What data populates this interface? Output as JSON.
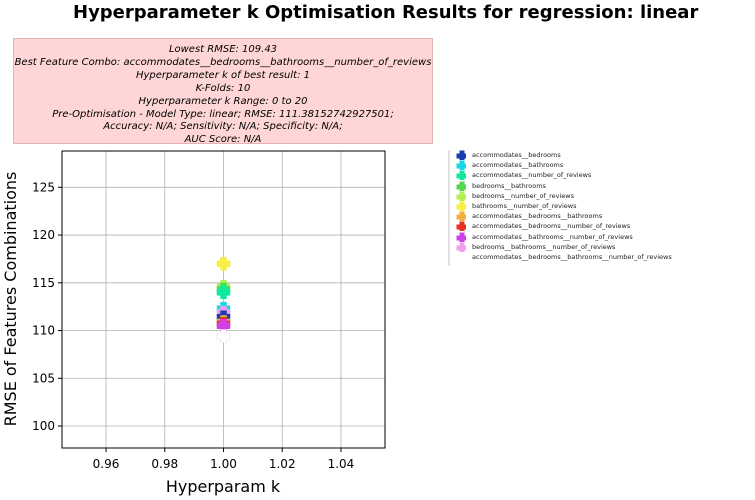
{
  "title": "Hyperparameter k Optimisation Results for regression: linear",
  "info_lines": [
    "Lowest RMSE: 109.43",
    "Best Feature Combo: accommodates__bedrooms__bathrooms__number_of_reviews",
    "Hyperparameter k of best result: 1",
    "K-Folds: 10",
    "Hyperparameter k Range: 0 to 20",
    "Pre-Optimisation - Model Type: linear; RMSE: 111.38152742927501;",
    "Accuracy: N/A; Sensitivity: N/A; Specificity: N/A;",
    "AUC Score: N/A"
  ],
  "chart_data": {
    "type": "scatter",
    "title": "",
    "xlabel": "Hyperparam k",
    "ylabel": "RMSE of Features Combinations",
    "xlim": [
      0.945,
      1.055
    ],
    "ylim": [
      97.7,
      128.8
    ],
    "xticks": [
      0.96,
      0.98,
      1.0,
      1.02,
      1.04
    ],
    "xtick_labels": [
      "0.96",
      "0.98",
      "1.00",
      "1.02",
      "1.04"
    ],
    "yticks": [
      100,
      105,
      110,
      115,
      120,
      125
    ],
    "ytick_labels": [
      "100",
      "105",
      "110",
      "115",
      "120",
      "125"
    ],
    "grid": true,
    "legend_position": "outside-right",
    "series": [
      {
        "name": "accommodates__bedrooms",
        "color": "#1a3cb0",
        "x": [
          1
        ],
        "y": [
          111.4
        ]
      },
      {
        "name": "accommodates__bathrooms",
        "color": "#18d8e8",
        "x": [
          1
        ],
        "y": [
          112.3
        ]
      },
      {
        "name": "accommodates__number_of_reviews",
        "color": "#10e8a0",
        "x": [
          1
        ],
        "y": [
          114.0
        ]
      },
      {
        "name": "bedrooms__bathrooms",
        "color": "#50d850",
        "x": [
          1
        ],
        "y": [
          114.3
        ]
      },
      {
        "name": "bedrooms__number_of_reviews",
        "color": "#b0f050",
        "x": [
          1
        ],
        "y": [
          114.6
        ]
      },
      {
        "name": "bathrooms__number_of_reviews",
        "color": "#f8f040",
        "x": [
          1
        ],
        "y": [
          117.0
        ]
      },
      {
        "name": "accommodates__bedrooms__bathrooms",
        "color": "#f0b040",
        "x": [
          1
        ],
        "y": [
          110.9
        ]
      },
      {
        "name": "accommodates__bedrooms__number_of_reviews",
        "color": "#e83020",
        "x": [
          1
        ],
        "y": [
          110.7
        ]
      },
      {
        "name": "accommodates__bathrooms__number_of_reviews",
        "color": "#d040e8",
        "x": [
          1
        ],
        "y": [
          110.5
        ]
      },
      {
        "name": "bedrooms__bathrooms__number_of_reviews",
        "color": "#f0a0e8",
        "x": [
          1
        ],
        "y": [
          111.9
        ]
      },
      {
        "name": "accommodates__bedrooms__bathrooms__number_of_reviews",
        "color": "#ffffff",
        "x": [
          1
        ],
        "y": [
          109.43
        ]
      }
    ]
  }
}
